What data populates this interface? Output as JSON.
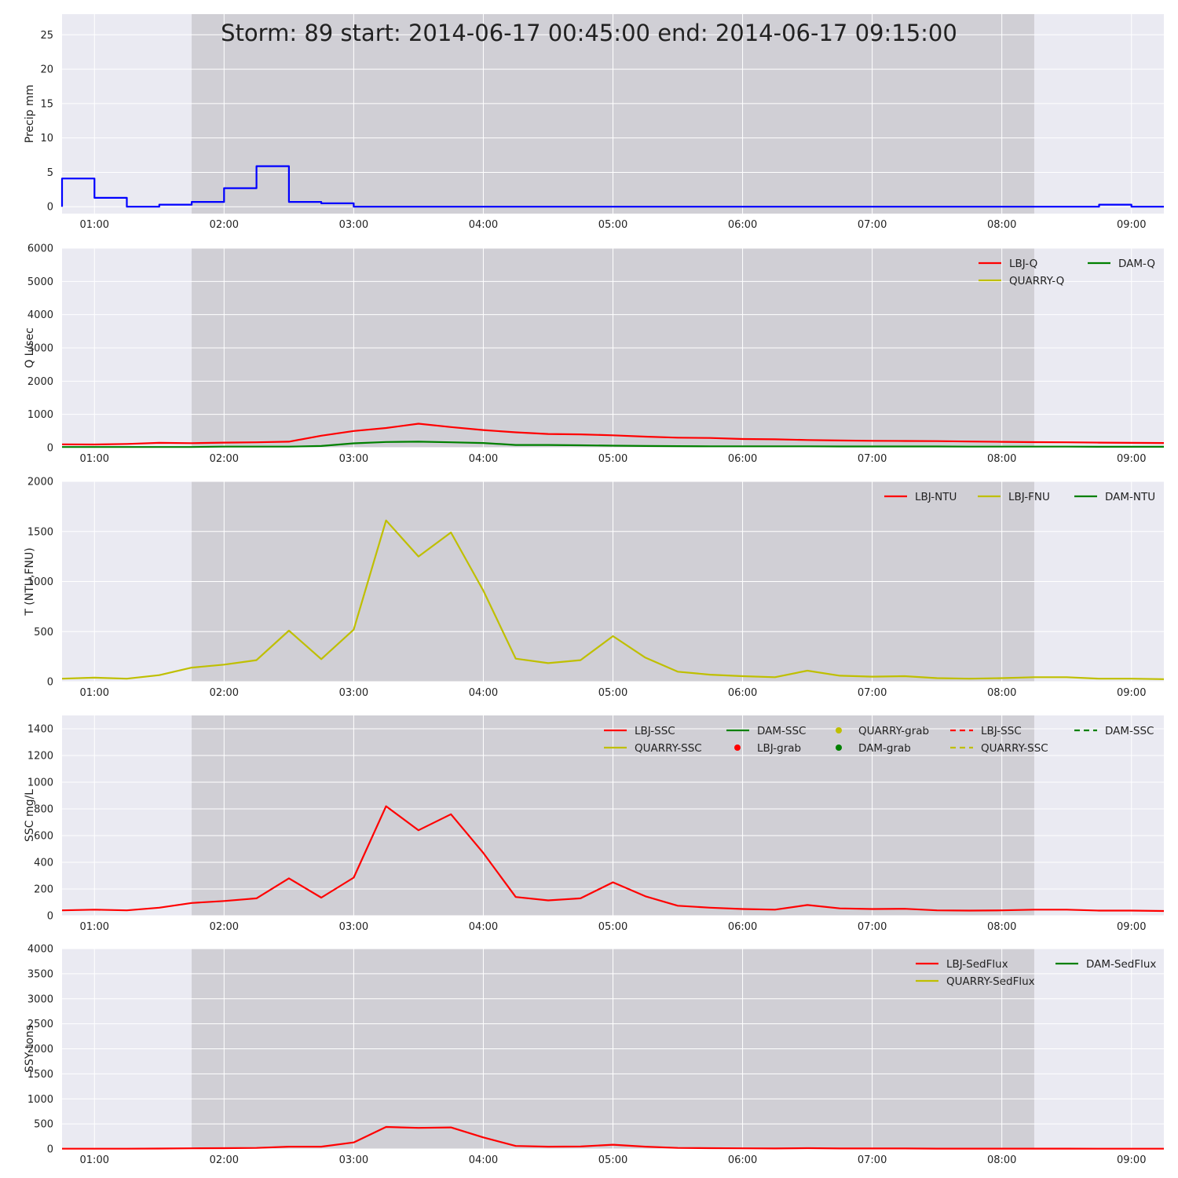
{
  "chart_data": {
    "type": "line",
    "title": "Storm: 89 start: 2014-06-17 00:45:00 end: 2014-06-17 09:15:00",
    "storm_window": [
      "2014-06-17 01:45",
      "2014-06-17 08:15"
    ],
    "x_range": [
      "2014-06-17 00:45",
      "2014-06-17 09:15"
    ],
    "x_ticks": [
      "01:00",
      "02:00",
      "03:00",
      "04:00",
      "05:00",
      "06:00",
      "07:00",
      "08:00",
      "09:00"
    ],
    "grid": true,
    "panels": [
      {
        "ylabel": "Precip mm",
        "ylim": [
          -1,
          28
        ],
        "yticks": [
          "0",
          "5",
          "10",
          "15",
          "20",
          "25"
        ],
        "legend": [],
        "series": [
          {
            "name": "Precip",
            "color": "#0000ff",
            "style": "step",
            "x": [
              "00:45",
              "01:00",
              "01:15",
              "01:30",
              "01:45",
              "02:00",
              "02:15",
              "02:30",
              "02:45",
              "03:00",
              "08:45",
              "09:00",
              "09:15"
            ],
            "values": [
              4.1,
              1.3,
              0.0,
              0.3,
              0.7,
              2.7,
              5.9,
              0.7,
              0.5,
              0.0,
              0.3,
              0.0,
              0.0
            ]
          }
        ]
      },
      {
        "ylabel": "Q L/sec",
        "ylim": [
          0,
          6000
        ],
        "yticks": [
          "0",
          "1000",
          "2000",
          "3000",
          "4000",
          "5000",
          "6000"
        ],
        "legend": [
          {
            "label": "LBJ-Q",
            "color": "#ff0000",
            "style": "line",
            "col": 0,
            "row": 0
          },
          {
            "label": "DAM-Q",
            "color": "#008000",
            "style": "line",
            "col": 1,
            "row": 0
          },
          {
            "label": "QUARRY-Q",
            "color": "#bfbf00",
            "style": "line",
            "col": 0,
            "row": 1
          }
        ],
        "legend_cols": [
          1246,
          1385
        ],
        "series": [
          {
            "name": "LBJ-Q",
            "color": "#ff0000",
            "style": "line",
            "x": [
              "00:45",
              "01:00",
              "01:15",
              "01:30",
              "01:45",
              "02:00",
              "02:15",
              "02:30",
              "02:45",
              "03:00",
              "03:15",
              "03:30",
              "03:45",
              "04:00",
              "04:15",
              "04:30",
              "04:45",
              "05:00",
              "05:15",
              "05:30",
              "05:45",
              "06:00",
              "06:15",
              "06:30",
              "06:45",
              "07:00",
              "07:15",
              "07:30",
              "07:45",
              "08:00",
              "08:15",
              "08:30",
              "08:45",
              "09:00",
              "09:15"
            ],
            "values": [
              100,
              95,
              110,
              145,
              135,
              150,
              160,
              180,
              360,
              500,
              590,
              720,
              620,
              530,
              460,
              410,
              400,
              370,
              330,
              300,
              290,
              260,
              250,
              230,
              215,
              205,
              200,
              195,
              185,
              175,
              165,
              160,
              150,
              145,
              140
            ]
          },
          {
            "name": "DAM-Q",
            "color": "#008000",
            "style": "line",
            "x": [
              "00:45",
              "01:00",
              "01:15",
              "01:30",
              "01:45",
              "02:00",
              "02:15",
              "02:30",
              "02:45",
              "03:00",
              "03:15",
              "03:30",
              "03:45",
              "04:00",
              "04:15",
              "04:30",
              "04:45",
              "05:00",
              "05:15",
              "05:30",
              "05:45",
              "06:00",
              "06:15",
              "06:30",
              "06:45",
              "07:00",
              "07:15",
              "07:30",
              "07:45",
              "08:00",
              "08:15",
              "08:30",
              "08:45",
              "09:00",
              "09:15"
            ],
            "values": [
              20,
              20,
              20,
              20,
              20,
              30,
              30,
              30,
              50,
              130,
              170,
              180,
              160,
              140,
              80,
              80,
              70,
              60,
              50,
              45,
              40,
              40,
              40,
              40,
              35,
              35,
              35,
              35,
              30,
              30,
              30,
              30,
              25,
              25,
              25
            ]
          }
        ]
      },
      {
        "ylabel": "T (NTU,FNU)",
        "ylim": [
          0,
          2000
        ],
        "yticks": [
          "0",
          "500",
          "1000",
          "1500",
          "2000"
        ],
        "legend": [
          {
            "label": "LBJ-NTU",
            "color": "#ff0000",
            "style": "line",
            "col": 0,
            "row": 0
          },
          {
            "label": "LBJ-FNU",
            "color": "#bfbf00",
            "style": "line",
            "col": 1,
            "row": 0
          },
          {
            "label": "DAM-NTU",
            "color": "#008000",
            "style": "line",
            "col": 2,
            "row": 0
          }
        ],
        "legend_cols": [
          1126,
          1245,
          1368
        ],
        "series": [
          {
            "name": "LBJ-FNU",
            "color": "#bfbf00",
            "style": "line",
            "x": [
              "00:45",
              "01:00",
              "01:15",
              "01:30",
              "01:45",
              "02:00",
              "02:15",
              "02:30",
              "02:45",
              "03:00",
              "03:15",
              "03:30",
              "03:45",
              "04:00",
              "04:15",
              "04:30",
              "04:45",
              "05:00",
              "05:15",
              "05:30",
              "05:45",
              "06:00",
              "06:15",
              "06:30",
              "06:45",
              "07:00",
              "07:15",
              "07:30",
              "07:45",
              "08:00",
              "08:15",
              "08:30",
              "08:45",
              "09:00",
              "09:15"
            ],
            "values": [
              30,
              40,
              30,
              65,
              140,
              170,
              215,
              510,
              225,
              520,
              1610,
              1250,
              1490,
              910,
              230,
              185,
              215,
              455,
              240,
              100,
              70,
              55,
              45,
              110,
              60,
              50,
              55,
              35,
              30,
              35,
              45,
              45,
              30,
              30,
              25
            ]
          }
        ]
      },
      {
        "ylabel": "SSC mg/L",
        "ylim": [
          0,
          1500
        ],
        "yticks": [
          "0",
          "200",
          "400",
          "600",
          "800",
          "1000",
          "1200",
          "1400"
        ],
        "legend": [
          {
            "label": "LBJ-SSC",
            "color": "#ff0000",
            "style": "line",
            "col": 0,
            "row": 0
          },
          {
            "label": "DAM-SSC",
            "color": "#008000",
            "style": "line",
            "col": 1,
            "row": 0
          },
          {
            "label": "QUARRY-grab",
            "color": "#bfbf00",
            "style": "dot",
            "col": 2,
            "row": 0
          },
          {
            "label": "LBJ-SSC",
            "color": "#ff0000",
            "style": "dashed",
            "col": 3,
            "row": 0
          },
          {
            "label": "DAM-SSC",
            "color": "#008000",
            "style": "dashed",
            "col": 4,
            "row": 0
          },
          {
            "label": "QUARRY-SSC",
            "color": "#bfbf00",
            "style": "line",
            "col": 0,
            "row": 1
          },
          {
            "label": "LBJ-grab",
            "color": "#ff0000",
            "style": "dot",
            "col": 1,
            "row": 1
          },
          {
            "label": "DAM-grab",
            "color": "#008000",
            "style": "dot",
            "col": 2,
            "row": 1
          },
          {
            "label": "QUARRY-SSC",
            "color": "#bfbf00",
            "style": "dashed",
            "col": 3,
            "row": 1
          }
        ],
        "legend_cols": [
          769,
          925,
          1054,
          1210,
          1368
        ],
        "series": [
          {
            "name": "LBJ-SSC",
            "color": "#ff0000",
            "style": "line",
            "x": [
              "00:45",
              "01:00",
              "01:15",
              "01:30",
              "01:45",
              "02:00",
              "02:15",
              "02:30",
              "02:45",
              "03:00",
              "03:15",
              "03:30",
              "03:45",
              "04:00",
              "04:15",
              "04:30",
              "04:45",
              "05:00",
              "05:15",
              "05:30",
              "05:45",
              "06:00",
              "06:15",
              "06:30",
              "06:45",
              "07:00",
              "07:15",
              "07:30",
              "07:45",
              "08:00",
              "08:15",
              "08:30",
              "08:45",
              "09:00",
              "09:15"
            ],
            "values": [
              40,
              45,
              40,
              60,
              95,
              110,
              130,
              280,
              135,
              285,
              820,
              640,
              760,
              470,
              140,
              115,
              130,
              250,
              145,
              75,
              60,
              50,
              45,
              80,
              55,
              50,
              52,
              40,
              38,
              40,
              45,
              45,
              38,
              38,
              35
            ]
          }
        ]
      },
      {
        "ylabel": "SSY tons",
        "ylim": [
          0,
          4000
        ],
        "yticks": [
          "0",
          "500",
          "1000",
          "1500",
          "2000",
          "2500",
          "3000",
          "3500",
          "4000"
        ],
        "legend": [
          {
            "label": "LBJ-SedFlux",
            "color": "#ff0000",
            "style": "line",
            "col": 0,
            "row": 0
          },
          {
            "label": "DAM-SedFlux",
            "color": "#008000",
            "style": "line",
            "col": 1,
            "row": 0
          },
          {
            "label": "QUARRY-SedFlux",
            "color": "#bfbf00",
            "style": "line",
            "col": 0,
            "row": 1
          }
        ],
        "legend_cols": [
          1166,
          1344
        ],
        "series": [
          {
            "name": "LBJ-SedFlux",
            "color": "#ff0000",
            "style": "line",
            "x": [
              "00:45",
              "01:00",
              "01:15",
              "01:30",
              "01:45",
              "02:00",
              "02:15",
              "02:30",
              "02:45",
              "03:00",
              "03:15",
              "03:30",
              "03:45",
              "04:00",
              "04:15",
              "04:30",
              "04:45",
              "05:00",
              "05:15",
              "05:30",
              "05:45",
              "06:00",
              "06:15",
              "06:30",
              "06:45",
              "07:00",
              "07:15",
              "07:30",
              "07:45",
              "08:00",
              "08:15",
              "08:30",
              "08:45",
              "09:00",
              "09:15"
            ],
            "values": [
              4,
              4,
              4,
              8,
              12,
              15,
              20,
              45,
              45,
              130,
              440,
              420,
              430,
              230,
              60,
              45,
              48,
              85,
              45,
              20,
              15,
              12,
              10,
              15,
              10,
              9,
              9,
              7,
              6,
              6,
              6,
              6,
              5,
              5,
              5
            ]
          }
        ]
      }
    ]
  }
}
